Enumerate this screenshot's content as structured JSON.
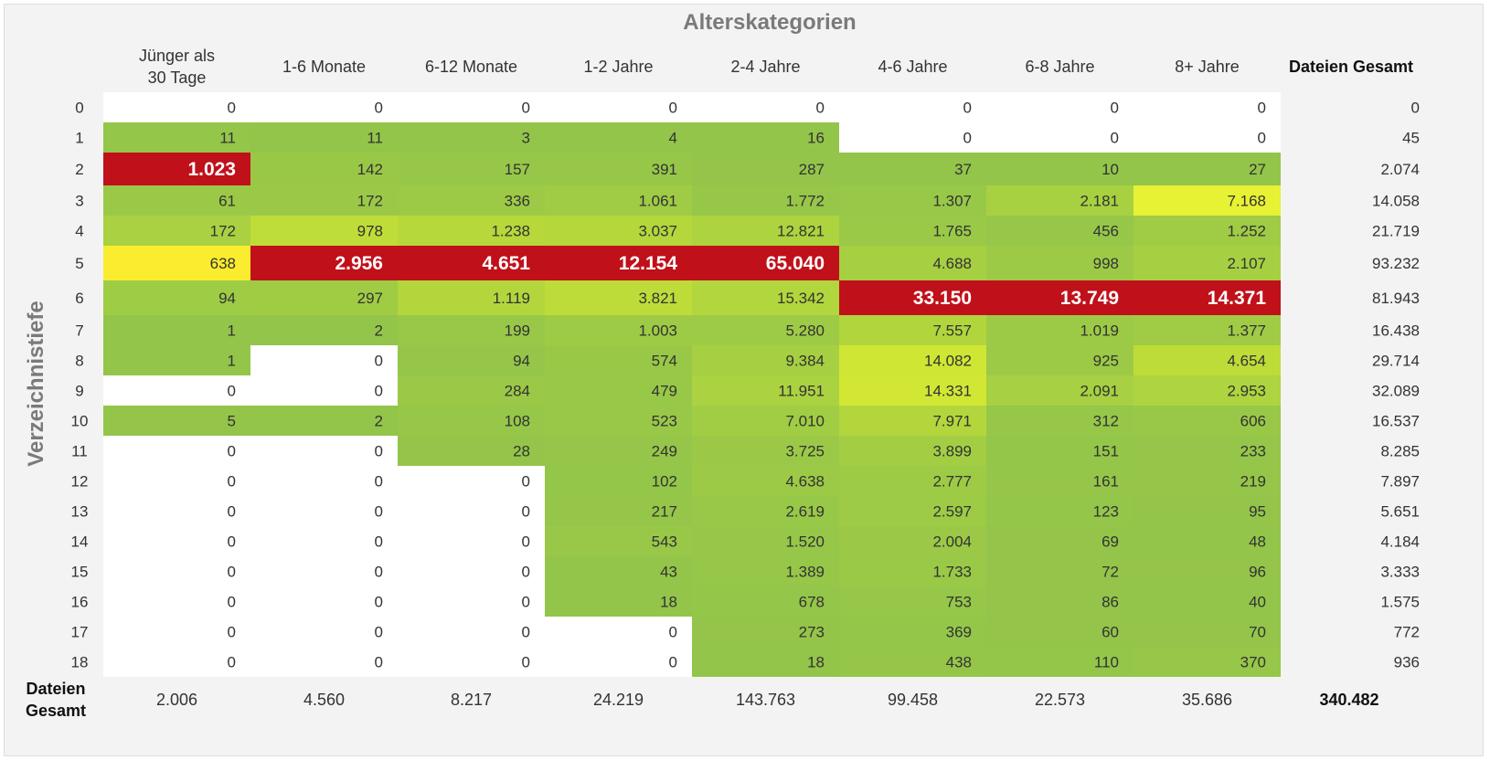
{
  "chart_data": {
    "type": "heatmap",
    "title": "Alterskategorien",
    "xlabel": "Alterskategorien",
    "ylabel": "Verzeichnistiefe",
    "columns": [
      "Jünger als 30 Tage",
      "1-6 Monate",
      "6-12 Monate",
      "1-2 Jahre",
      "2-4 Jahre",
      "4-6 Jahre",
      "6-8 Jahre",
      "8+ Jahre"
    ],
    "column_total_header": "Dateien Gesamt",
    "row_total_header": "Dateien Gesamt",
    "rows": [
      "0",
      "1",
      "2",
      "3",
      "4",
      "5",
      "6",
      "7",
      "8",
      "9",
      "10",
      "11",
      "12",
      "13",
      "14",
      "15",
      "16",
      "17",
      "18"
    ],
    "values": [
      [
        0,
        0,
        0,
        0,
        0,
        0,
        0,
        0
      ],
      [
        11,
        11,
        3,
        4,
        16,
        0,
        0,
        0
      ],
      [
        1023,
        142,
        157,
        391,
        287,
        37,
        10,
        27
      ],
      [
        61,
        172,
        336,
        1061,
        1772,
        1307,
        2181,
        7168
      ],
      [
        172,
        978,
        1238,
        3037,
        12821,
        1765,
        456,
        1252
      ],
      [
        638,
        2956,
        4651,
        12154,
        65040,
        4688,
        998,
        2107
      ],
      [
        94,
        297,
        1119,
        3821,
        15342,
        33150,
        13749,
        14371
      ],
      [
        1,
        2,
        199,
        1003,
        5280,
        7557,
        1019,
        1377
      ],
      [
        1,
        0,
        94,
        574,
        9384,
        14082,
        925,
        4654
      ],
      [
        0,
        0,
        284,
        479,
        11951,
        14331,
        2091,
        2953
      ],
      [
        5,
        2,
        108,
        523,
        7010,
        7971,
        312,
        606
      ],
      [
        0,
        0,
        28,
        249,
        3725,
        3899,
        151,
        233
      ],
      [
        0,
        0,
        0,
        102,
        4638,
        2777,
        161,
        219
      ],
      [
        0,
        0,
        0,
        217,
        2619,
        2597,
        123,
        95
      ],
      [
        0,
        0,
        0,
        543,
        1520,
        2004,
        69,
        48
      ],
      [
        0,
        0,
        0,
        43,
        1389,
        1733,
        72,
        96
      ],
      [
        0,
        0,
        0,
        18,
        678,
        753,
        86,
        40
      ],
      [
        0,
        0,
        0,
        0,
        273,
        369,
        60,
        70
      ],
      [
        0,
        0,
        0,
        0,
        18,
        438,
        110,
        370
      ]
    ],
    "row_totals": [
      0,
      45,
      2074,
      14058,
      21719,
      93232,
      81943,
      16438,
      29714,
      32089,
      16537,
      8285,
      7897,
      5651,
      4184,
      3333,
      1575,
      772,
      936
    ],
    "column_totals": [
      2006,
      4560,
      8217,
      24219,
      143763,
      99458,
      22573,
      35686
    ],
    "grand_total": 340482,
    "number_format": "de-DE",
    "colors": {
      "low": "#93c54a",
      "mid": "#ffff33",
      "high": "#c0101a",
      "zero": "#ffffff",
      "panel": "#f3f3f3"
    }
  }
}
